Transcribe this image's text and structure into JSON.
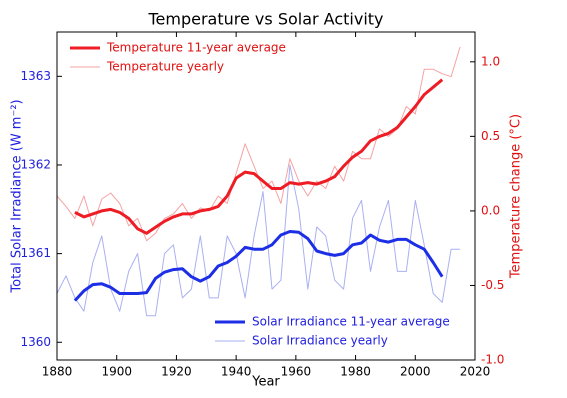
{
  "chart_data": {
    "type": "line",
    "title": "Temperature vs Solar Activity",
    "xlabel": "Year",
    "ylabel": "Total Solar Irradiance (W m⁻²)",
    "y2label": "Temperature change (°C)",
    "ylabel_color": "#2020e0",
    "y2label_color": "#e01010",
    "x": [
      1880,
      1883,
      1886,
      1889,
      1892,
      1895,
      1898,
      1901,
      1904,
      1907,
      1910,
      1913,
      1916,
      1919,
      1922,
      1925,
      1928,
      1931,
      1934,
      1937,
      1940,
      1943,
      1946,
      1949,
      1952,
      1955,
      1958,
      1961,
      1964,
      1967,
      1970,
      1973,
      1976,
      1979,
      1982,
      1985,
      1988,
      1991,
      1994,
      1997,
      2000,
      2003,
      2006,
      2009,
      2012,
      2015
    ],
    "series": [
      {
        "name": "Temperature 11-year average",
        "color": "#ee1c24",
        "width": 3,
        "axis": "y2",
        "legend_loc": "upper left",
        "values": [
          null,
          null,
          -0.01,
          -0.04,
          -0.02,
          0.0,
          0.01,
          -0.01,
          -0.05,
          -0.12,
          -0.15,
          -0.11,
          -0.07,
          -0.04,
          -0.02,
          -0.02,
          0.0,
          0.01,
          0.03,
          0.1,
          0.22,
          0.26,
          0.25,
          0.2,
          0.15,
          0.15,
          0.19,
          0.18,
          0.19,
          0.18,
          0.2,
          0.23,
          0.3,
          0.36,
          0.4,
          0.47,
          0.5,
          0.52,
          0.56,
          0.63,
          0.7,
          0.78,
          0.83,
          0.88,
          null,
          null
        ]
      },
      {
        "name": "Temperature yearly",
        "color": "#f5a3a3",
        "width": 1,
        "axis": "y2",
        "legend_loc": "upper left",
        "values": [
          0.1,
          0.03,
          -0.05,
          0.1,
          -0.1,
          0.08,
          0.12,
          0.05,
          -0.1,
          -0.05,
          -0.2,
          -0.15,
          -0.05,
          -0.02,
          0.05,
          -0.05,
          0.02,
          0.0,
          0.1,
          0.05,
          0.25,
          0.45,
          0.3,
          0.15,
          0.2,
          0.05,
          0.35,
          0.2,
          0.1,
          0.2,
          0.15,
          0.3,
          0.2,
          0.4,
          0.35,
          0.35,
          0.55,
          0.5,
          0.55,
          0.7,
          0.65,
          0.95,
          0.95,
          0.92,
          0.9,
          1.1
        ]
      },
      {
        "name": "Solar Irradiance 11-year average",
        "color": "#1c2ee6",
        "width": 3,
        "axis": "y",
        "legend_loc": "lower right",
        "values": [
          null,
          null,
          1360.47,
          1360.58,
          1360.65,
          1360.66,
          1360.62,
          1360.55,
          1360.55,
          1360.55,
          1360.56,
          1360.72,
          1360.79,
          1360.82,
          1360.83,
          1360.74,
          1360.69,
          1360.74,
          1360.86,
          1360.9,
          1360.97,
          1361.07,
          1361.05,
          1361.05,
          1361.1,
          1361.21,
          1361.25,
          1361.24,
          1361.17,
          1361.03,
          1361.0,
          1360.98,
          1361.0,
          1361.1,
          1361.12,
          1361.21,
          1361.15,
          1361.13,
          1361.16,
          1361.16,
          1361.1,
          1361.05,
          1360.9,
          1360.74,
          null,
          null
        ]
      },
      {
        "name": "Solar Irradiance yearly",
        "color": "#aab0f2",
        "width": 1,
        "axis": "y",
        "legend_loc": "lower right",
        "values": [
          1360.55,
          1360.75,
          1360.5,
          1360.35,
          1360.9,
          1361.2,
          1360.6,
          1360.35,
          1360.8,
          1361.0,
          1360.3,
          1360.3,
          1361.0,
          1361.1,
          1360.5,
          1360.6,
          1361.2,
          1360.5,
          1360.5,
          1361.2,
          1361.0,
          1360.5,
          1361.2,
          1361.7,
          1360.6,
          1360.7,
          1362.0,
          1361.5,
          1360.6,
          1361.3,
          1361.2,
          1360.7,
          1360.6,
          1361.4,
          1361.6,
          1360.8,
          1361.3,
          1361.6,
          1360.8,
          1360.8,
          1361.6,
          1361.1,
          1360.55,
          1360.45,
          1361.05,
          1361.05
        ]
      }
    ],
    "xlim": [
      1880,
      2020
    ],
    "xticks": [
      1880,
      1900,
      1920,
      1940,
      1960,
      1980,
      2000,
      2020
    ],
    "ylim": [
      1359.8,
      1363.5
    ],
    "yticks": [
      1360,
      1361,
      1362,
      1363
    ],
    "y2lim": [
      -1.0,
      1.2
    ],
    "y2ticks": [
      {
        "value": -1.0,
        "label": "-1.0"
      },
      {
        "value": -0.5,
        "label": "-0.5"
      },
      {
        "value": 0.0,
        "label": "0.0"
      },
      {
        "value": 0.5,
        "label": "0.5"
      },
      {
        "value": 1.0,
        "label": "1.0"
      }
    ],
    "grid": false
  }
}
